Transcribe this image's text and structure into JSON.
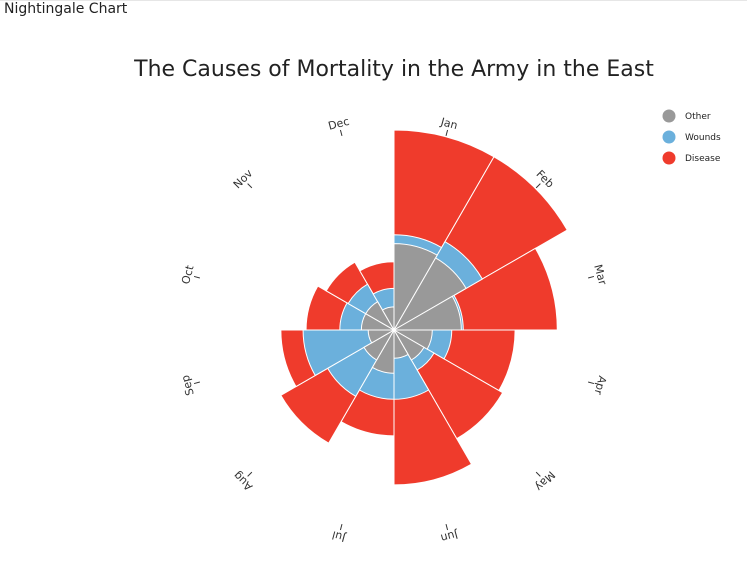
{
  "app": {
    "title": "Nightingale Chart"
  },
  "colors": {
    "Other": "#999999",
    "Wounds": "#6bb0dc",
    "Disease": "#ef3b2c",
    "tick": "#333333",
    "separator": "#ffffff"
  },
  "chart_data": {
    "type": "nightingale-rose",
    "title": "The Causes of Mortality in the Army in the East",
    "categories": [
      "Jan",
      "Feb",
      "Mar",
      "Apr",
      "May",
      "Jun",
      "Jul",
      "Aug",
      "Sep",
      "Oct",
      "Nov",
      "Dec"
    ],
    "scale": "sqrt (area proportional to value), wedges start at 12 o'clock and run clockwise",
    "series": [
      {
        "name": "Disease",
        "values": [
          1500,
          1500,
          1000,
          550,
          590,
          900,
          420,
          640,
          480,
          290,
          230,
          175
        ]
      },
      {
        "name": "Wounds",
        "values": [
          340,
          390,
          180,
          125,
          80,
          180,
          180,
          220,
          310,
          110,
          105,
          65
        ]
      },
      {
        "name": "Other",
        "values": [
          280,
          260,
          170,
          55,
          45,
          30,
          70,
          45,
          25,
          40,
          40,
          20
        ]
      }
    ],
    "legend": {
      "position": "top-right",
      "entries": [
        "Other",
        "Wounds",
        "Disease"
      ]
    }
  }
}
